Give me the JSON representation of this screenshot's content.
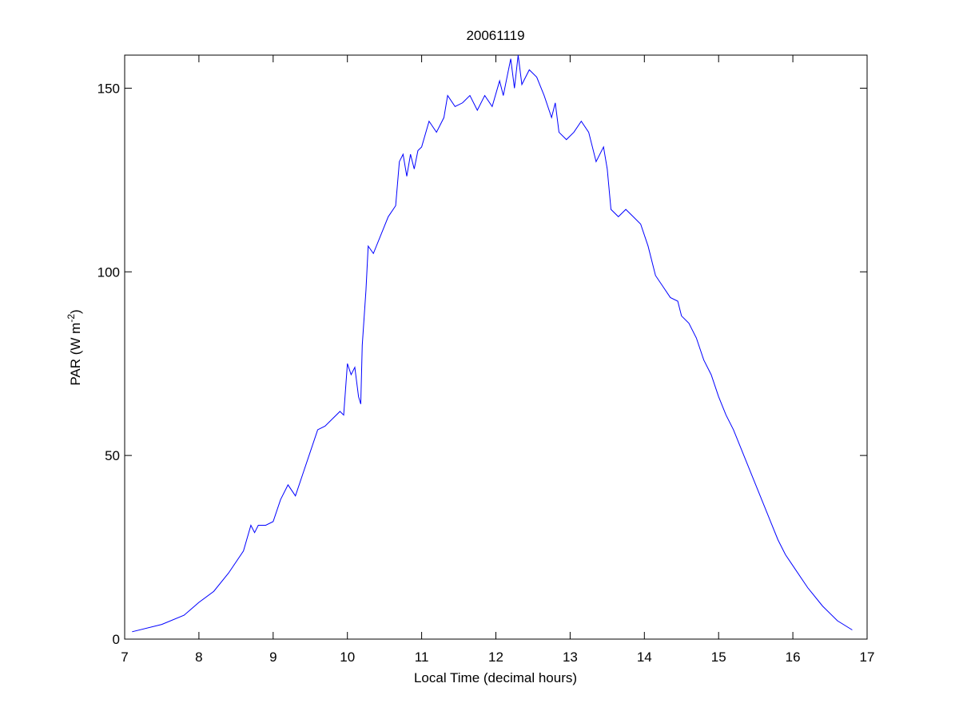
{
  "chart_data": {
    "type": "line",
    "title": "20061119",
    "xlabel": "Local Time (decimal hours)",
    "ylabel": [
      "PAR (W m",
      "-2",
      ")"
    ],
    "xlim": [
      7,
      17
    ],
    "xticks": [
      7,
      8,
      9,
      10,
      11,
      12,
      13,
      14,
      15,
      16,
      17
    ],
    "ylim": [
      0,
      159
    ],
    "yticks": [
      0,
      50,
      100,
      150
    ],
    "grid": false,
    "x": [
      7.1,
      7.5,
      7.8,
      8.0,
      8.2,
      8.4,
      8.6,
      8.7,
      8.75,
      8.8,
      8.9,
      9.0,
      9.1,
      9.2,
      9.3,
      9.4,
      9.5,
      9.6,
      9.7,
      9.8,
      9.9,
      9.95,
      10.0,
      10.05,
      10.1,
      10.15,
      10.18,
      10.2,
      10.25,
      10.28,
      10.35,
      10.45,
      10.55,
      10.65,
      10.7,
      10.75,
      10.8,
      10.85,
      10.9,
      10.95,
      11.0,
      11.1,
      11.2,
      11.3,
      11.35,
      11.45,
      11.55,
      11.65,
      11.75,
      11.85,
      11.95,
      12.05,
      12.1,
      12.15,
      12.2,
      12.25,
      12.3,
      12.35,
      12.45,
      12.55,
      12.65,
      12.75,
      12.8,
      12.85,
      12.95,
      13.05,
      13.15,
      13.25,
      13.35,
      13.45,
      13.5,
      13.55,
      13.65,
      13.75,
      13.85,
      13.95,
      14.05,
      14.15,
      14.25,
      14.35,
      14.45,
      14.5,
      14.6,
      14.7,
      14.8,
      14.9,
      15.0,
      15.1,
      15.2,
      15.3,
      15.4,
      15.5,
      15.6,
      15.7,
      15.8,
      15.9,
      16.0,
      16.2,
      16.4,
      16.6,
      16.8
    ],
    "series": [
      {
        "color": "#0000ff",
        "values": [
          2,
          4,
          6.5,
          10,
          13,
          18,
          24,
          31,
          29,
          31,
          31,
          32,
          38,
          42,
          39,
          45,
          51,
          57,
          58,
          60,
          62,
          61,
          75,
          72,
          74,
          66,
          64,
          80,
          95,
          107,
          105,
          110,
          115,
          118,
          130,
          132,
          126,
          132,
          128,
          133,
          134,
          141,
          138,
          142,
          148,
          145,
          146,
          148,
          144,
          148,
          145,
          152,
          148,
          153,
          158,
          150,
          159,
          151,
          155,
          153,
          148,
          142,
          146,
          138,
          136,
          138,
          141,
          138,
          130,
          134,
          128,
          117,
          115,
          117,
          115,
          113,
          107,
          99,
          96,
          93,
          92,
          88,
          86,
          82,
          76,
          72,
          66,
          61,
          57,
          52,
          47,
          42,
          37,
          32,
          27,
          23,
          20,
          14,
          9,
          5,
          2.5
        ]
      }
    ]
  }
}
